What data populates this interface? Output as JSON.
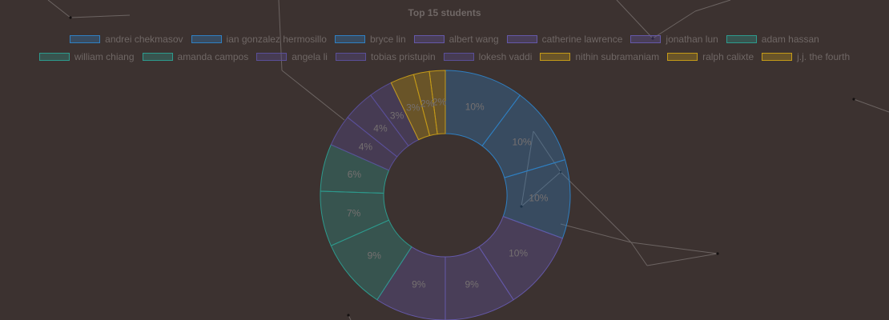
{
  "chart_data": {
    "type": "doughnut",
    "title": "Top 15 students",
    "legend_position": "top",
    "series": [
      {
        "label": "andrei chekmasov",
        "value": 10,
        "pct": "10%",
        "color": "#2f7fc1"
      },
      {
        "label": "ian gonzalez hermosillo",
        "value": 10,
        "pct": "10%",
        "color": "#2f7fc1"
      },
      {
        "label": "bryce lin",
        "value": 10,
        "pct": "10%",
        "color": "#2f7fc1"
      },
      {
        "label": "albert wang",
        "value": 10,
        "pct": "10%",
        "color": "#6458a8"
      },
      {
        "label": "catherine lawrence",
        "value": 9,
        "pct": "9%",
        "color": "#6458a8"
      },
      {
        "label": "jonathan lun",
        "value": 9,
        "pct": "9%",
        "color": "#6458a8"
      },
      {
        "label": "adam hassan",
        "value": 9,
        "pct": "9%",
        "color": "#2d9a8d"
      },
      {
        "label": "william chiang",
        "value": 7,
        "pct": "7%",
        "color": "#2d9a8d"
      },
      {
        "label": "amanda campos",
        "value": 6,
        "pct": "6%",
        "color": "#2d9a8d"
      },
      {
        "label": "angela li",
        "value": 4,
        "pct": "4%",
        "color": "#5a4f98"
      },
      {
        "label": "tobias pristupin",
        "value": 4,
        "pct": "4%",
        "color": "#5a4f98"
      },
      {
        "label": "lokesh vaddi",
        "value": 3,
        "pct": "3%",
        "color": "#5a4f98"
      },
      {
        "label": "nithin subramaniam",
        "value": 3,
        "pct": "3%",
        "color": "#c49a18"
      },
      {
        "label": "ralph calixte",
        "value": 2,
        "pct": "2%",
        "color": "#c49a18"
      },
      {
        "label": "j.j. the fourth",
        "value": 2,
        "pct": "2%",
        "color": "#c49a18"
      }
    ]
  },
  "colors": {
    "background": "#3c3230",
    "text": "#6f6765"
  }
}
